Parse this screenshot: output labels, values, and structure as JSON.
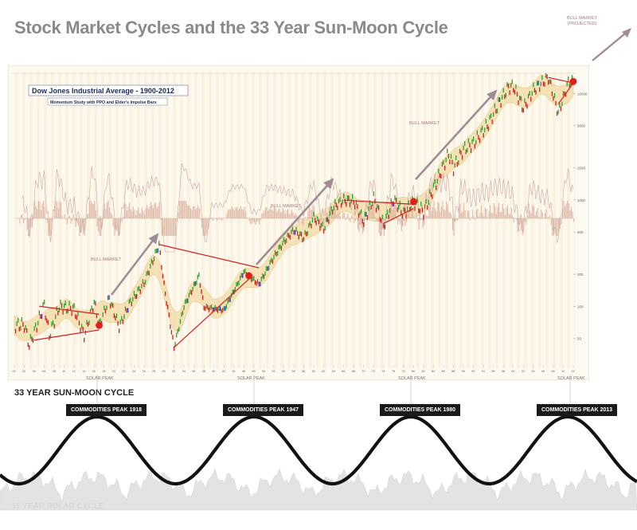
{
  "title": "Stock Market Cycles and the 33 Year Sun-Moon Cycle",
  "projected_label_line1": "BULL MARKET",
  "projected_label_line2": "(PROJECTED)",
  "chart_data": {
    "type": "line",
    "title": "Dow Jones Industrial Average - 1900-2012",
    "subtitle": "Momentum Study with PPO and Elder's Impulse Bars",
    "x_start": 1900,
    "x_end": 2012,
    "yscale": "log",
    "ylim": [
      30,
      15000
    ],
    "y_ticks": [
      50,
      100,
      200,
      500,
      1000,
      2000,
      5000,
      10000
    ],
    "series": [
      {
        "x": [
          1900,
          1902,
          1903,
          1906,
          1907,
          1909,
          1912,
          1914,
          1916,
          1917,
          1919,
          1921,
          1923,
          1926,
          1929,
          1930,
          1932,
          1934,
          1937,
          1938,
          1942,
          1946,
          1949,
          1952,
          1954,
          1956,
          1958,
          1960,
          1962,
          1964,
          1966,
          1968,
          1970,
          1972,
          1974,
          1976,
          1978,
          1980,
          1982,
          1984,
          1987,
          1988,
          1990,
          1992,
          1995,
          1997,
          1999,
          2000,
          2002,
          2004,
          2007,
          2009,
          2011,
          2012
        ],
        "values": [
          66,
          67,
          43,
          103,
          53,
          100,
          94,
          53,
          110,
          66,
          119,
          64,
          105,
          166,
          381,
          157,
          41,
          100,
          194,
          98,
          92,
          212,
          161,
          292,
          404,
          521,
          436,
          685,
          535,
          874,
          995,
          985,
          631,
          1036,
          577,
          1014,
          742,
          963,
          776,
          1286,
          2722,
          2000,
          2999,
          3413,
          5216,
          8000,
          11497,
          11723,
          7286,
          10854,
          14198,
          6547,
          12810,
          13000
        ]
      }
    ],
    "annotations": [
      "BULL MARKET",
      "BULL MARKET",
      "BULL MARKET"
    ],
    "markers": [
      1917,
      1947,
      1980,
      2012
    ],
    "solar_peaks": [
      "SOLAR PEAK",
      "SOLAR PEAK",
      "SOLAR PEAK",
      "SOLAR PEAK"
    ]
  },
  "cycle": {
    "title": "33 YEAR SUN-MOON CYCLE",
    "peaks": [
      "COMMODITIES PEAK 1918",
      "COMMODITIES PEAK 1947",
      "COMMODITIES PEAK 1980",
      "COMMODITIES PEAK 2013"
    ],
    "solar_title": "11 YEAR SOLAR CYCLE"
  },
  "colors": {
    "title": "#8a8a8a",
    "arrow": "#a08c94",
    "trendline": "#d42020",
    "marker": "#e31c1c",
    "up_bar": "#2ea02e",
    "down_bar": "#d02020",
    "neutral_bar": "#3030c0",
    "band": "#f1d9a4",
    "panel": "#fbf6ea"
  }
}
